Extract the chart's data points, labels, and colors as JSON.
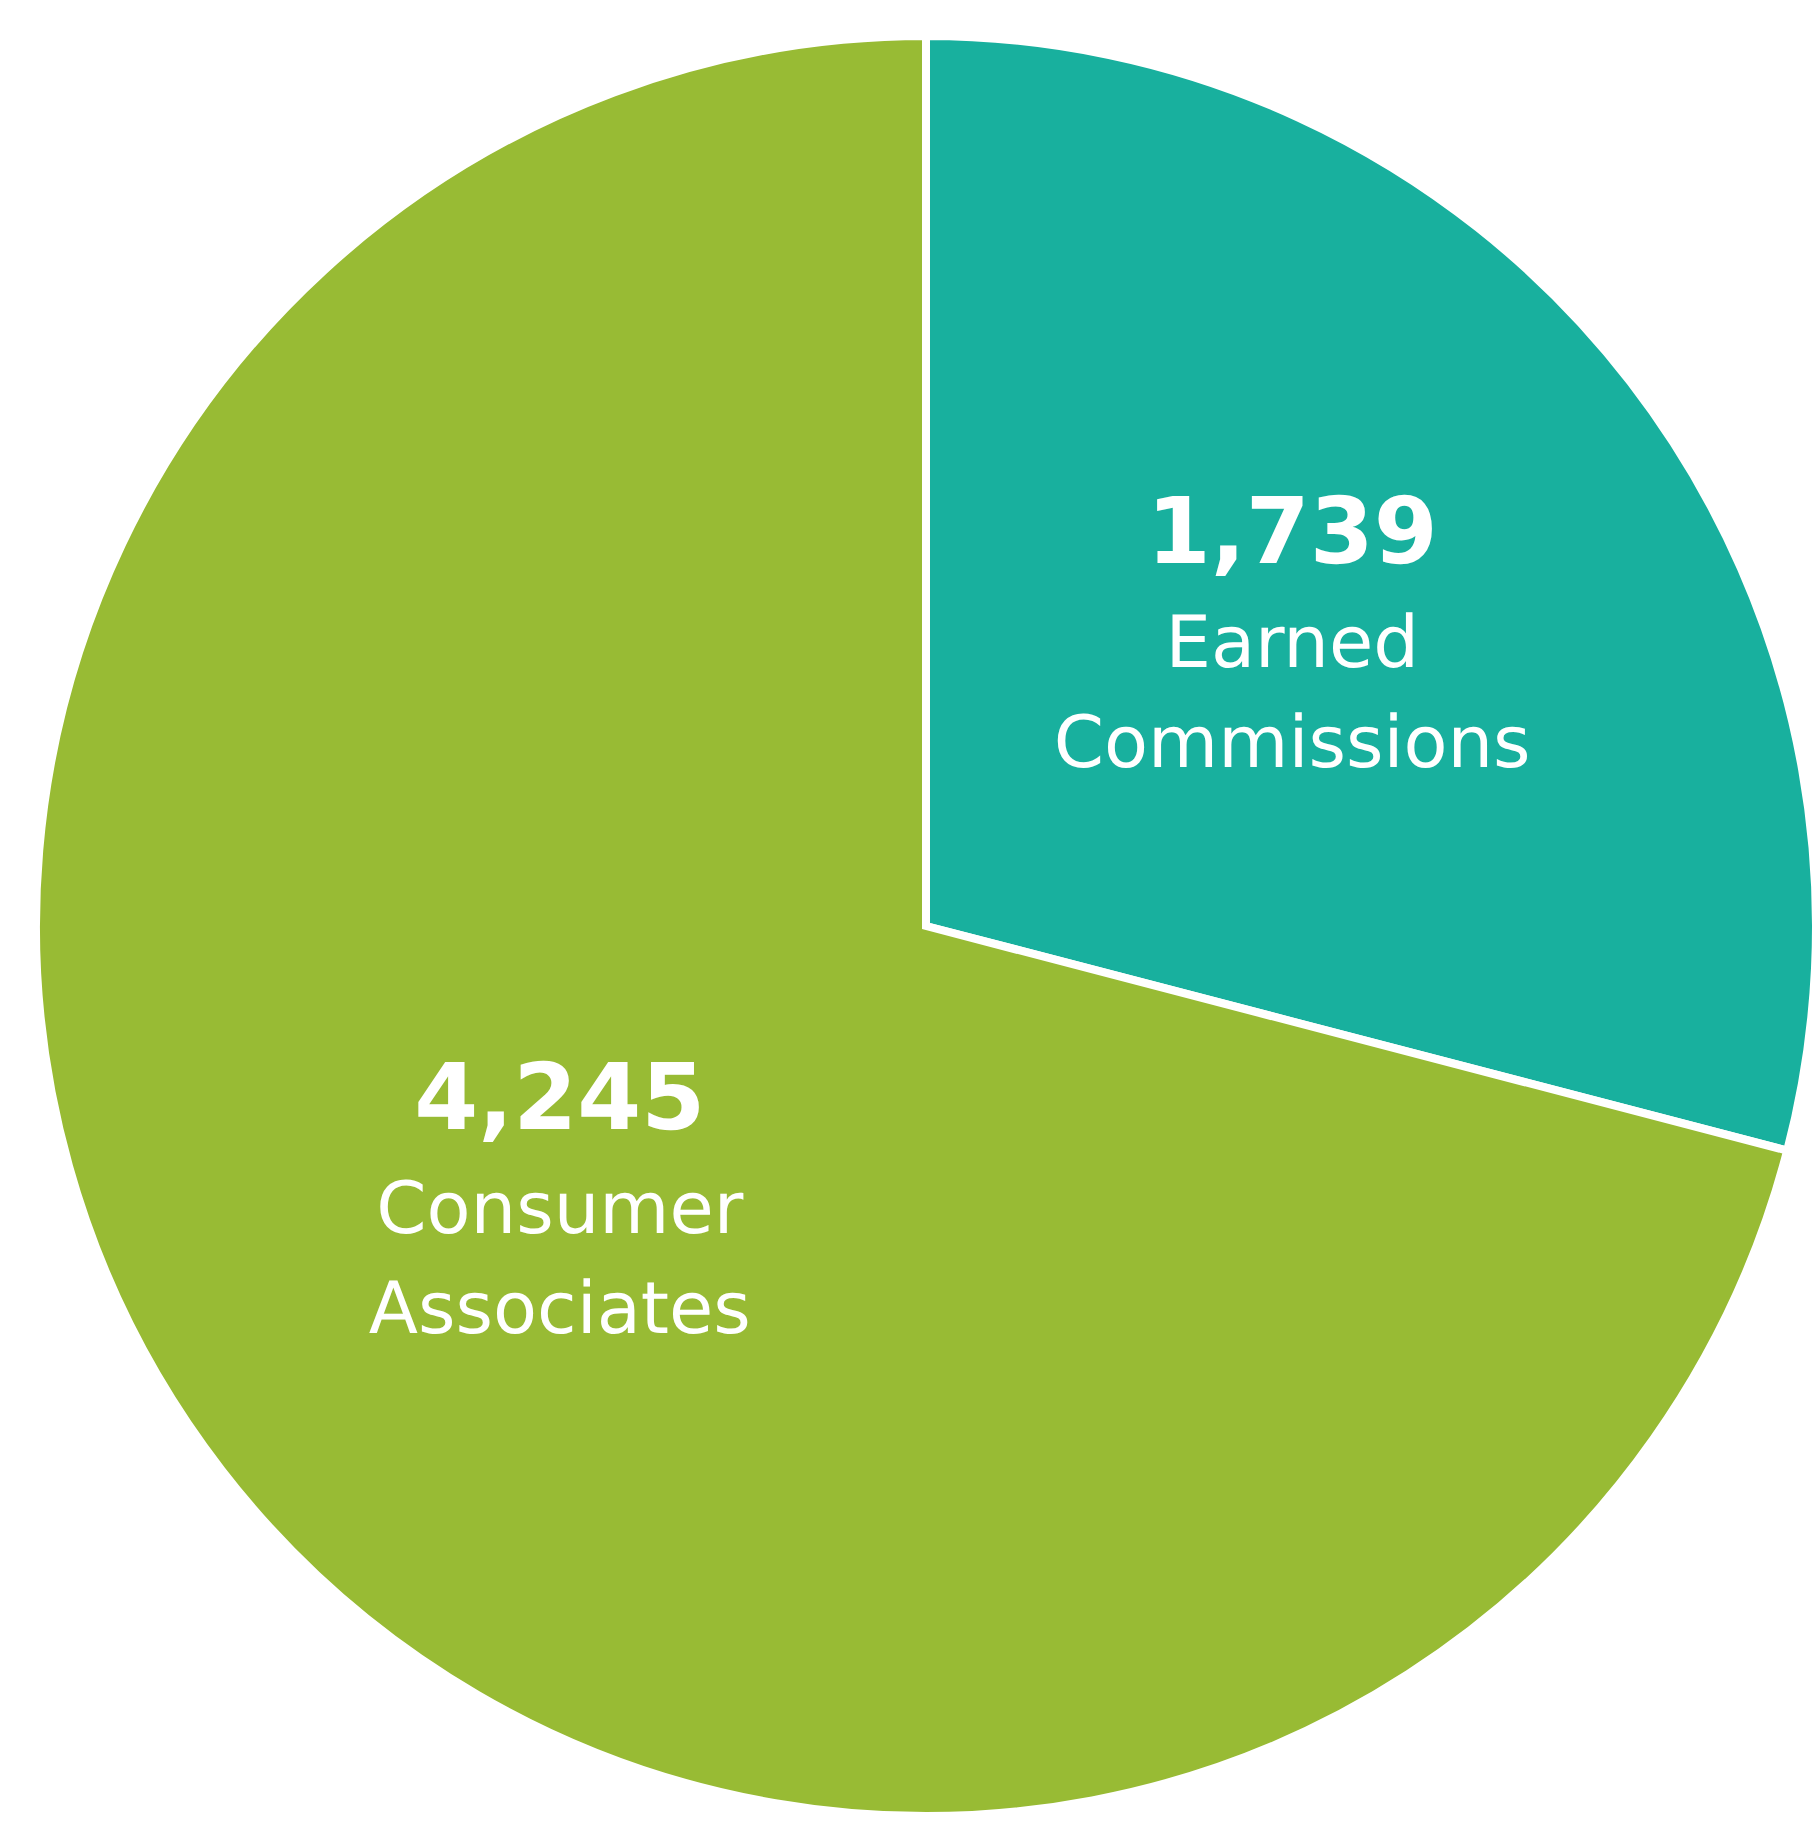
{
  "chart_data": {
    "type": "pie",
    "categories": [
      "Earned Commissions",
      "Consumer Associates"
    ],
    "values": [
      1739,
      4245
    ],
    "value_labels": [
      "1,739",
      "4,245"
    ],
    "colors": [
      "#18b09e",
      "#98bb34"
    ],
    "legend": false
  }
}
